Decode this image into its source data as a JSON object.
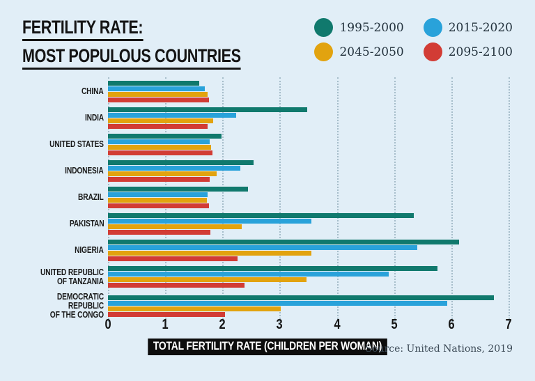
{
  "header": {
    "title_line1": "FERTILITY RATE:",
    "title_line2": "MOST POPULOUS COUNTRIES"
  },
  "axis": {
    "label": "TOTAL FERTILITY RATE (CHILDREN PER WOMAN)"
  },
  "source": "Source: United Nations, 2019",
  "colors": {
    "background": "#e1eef7",
    "text": "#141414",
    "gridline": "#a6bdca",
    "axis_title_bg": "#0d0d0d",
    "axis_title_text": "#ffffff",
    "source_text": "#3d4b57"
  },
  "chart_data": {
    "type": "bar",
    "orientation": "horizontal",
    "title": "FERTILITY RATE: MOST POPULOUS COUNTRIES",
    "xlabel": "TOTAL FERTILITY RATE (CHILDREN PER WOMAN)",
    "ylabel": "",
    "xlim": [
      0,
      7
    ],
    "xticks": [
      0,
      1,
      2,
      3,
      4,
      5,
      6,
      7
    ],
    "grid": "dotted-vertical",
    "legend_position": "top-right",
    "categories": [
      "CHINA",
      "INDIA",
      "UNITED STATES",
      "INDONESIA",
      "BRAZIL",
      "PAKISTAN",
      "NIGERIA",
      "UNITED REPUBLIC\nOF TANZANIA",
      "DEMOCRATIC REPUBLIC\nOF THE CONGO"
    ],
    "series": [
      {
        "name": "1995-2000",
        "color": "#10796d",
        "values": [
          1.6,
          3.48,
          1.99,
          2.55,
          2.45,
          5.35,
          6.13,
          5.76,
          6.75
        ]
      },
      {
        "name": "2015-2020",
        "color": "#29a2da",
        "values": [
          1.69,
          2.24,
          1.78,
          2.31,
          1.74,
          3.55,
          5.41,
          4.91,
          5.93
        ]
      },
      {
        "name": "2045-2050",
        "color": "#e2a30f",
        "values": [
          1.74,
          1.84,
          1.8,
          1.9,
          1.73,
          2.34,
          3.56,
          3.47,
          3.02
        ]
      },
      {
        "name": "2095-2100",
        "color": "#d23c35",
        "values": [
          1.77,
          1.74,
          1.82,
          1.78,
          1.76,
          1.79,
          2.26,
          2.39,
          2.05
        ]
      }
    ]
  }
}
